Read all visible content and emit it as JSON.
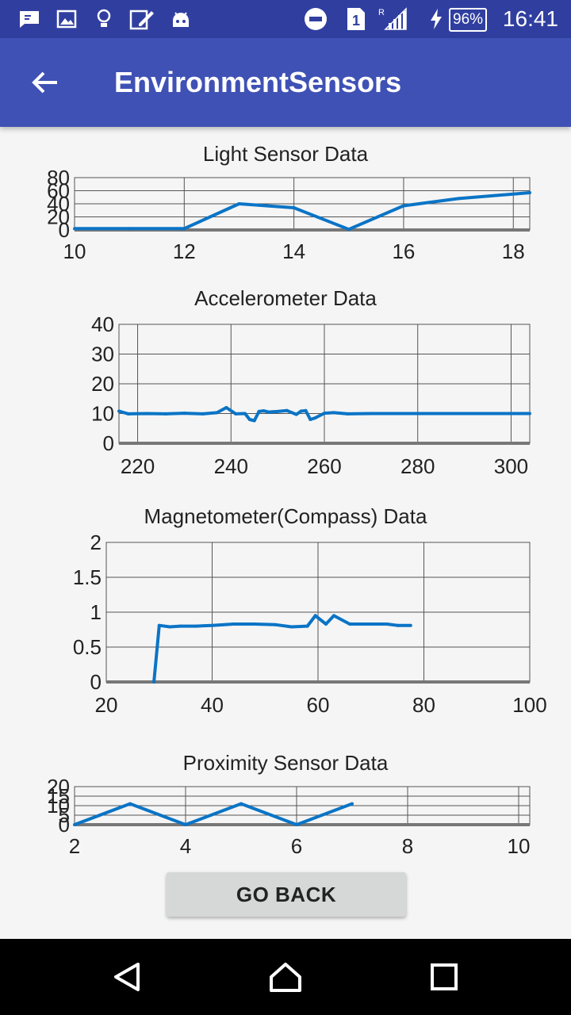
{
  "status_bar": {
    "time": "16:41",
    "battery": "96%",
    "icons": [
      "message-icon",
      "image-icon",
      "bulb-icon",
      "edit-icon",
      "android-icon",
      "dnd-icon",
      "sim-icon",
      "signal-icon",
      "charging-icon",
      "battery-icon"
    ]
  },
  "app_bar": {
    "title": "EnvironmentSensors",
    "back_icon": "arrow-back-icon"
  },
  "colors": {
    "status_bar": "#303f9f",
    "app_bar": "#3f51b5",
    "series": "#0a74c6",
    "grid": "#555555",
    "axis": "#777777"
  },
  "charts": [
    {
      "id": "light",
      "title": "Light Sensor Data",
      "chart_data": {
        "type": "line",
        "xlim": [
          10,
          18.3
        ],
        "ylim": [
          0,
          80
        ],
        "xticks": [
          "10",
          "12",
          "14",
          "16",
          "18"
        ],
        "yticks": [
          "0",
          "20",
          "40",
          "60",
          "80"
        ],
        "x": [
          10,
          11,
          12,
          13,
          14,
          15,
          16,
          17,
          18.3
        ],
        "y": [
          2,
          2,
          2,
          40,
          34,
          1,
          37,
          48,
          57
        ]
      }
    },
    {
      "id": "accel",
      "title": "Accelerometer Data",
      "chart_data": {
        "type": "line",
        "xlim": [
          216,
          304
        ],
        "ylim": [
          0,
          40
        ],
        "xticks": [
          "220",
          "240",
          "260",
          "280",
          "300"
        ],
        "yticks": [
          "0",
          "10",
          "20",
          "30",
          "40"
        ],
        "x": [
          216,
          218,
          222,
          226,
          230,
          234,
          237,
          239,
          241,
          243,
          244,
          245,
          246,
          247,
          248,
          250,
          252,
          254,
          255,
          256,
          257,
          258,
          260,
          262,
          265,
          270,
          280,
          290,
          300,
          304
        ],
        "y": [
          10.8,
          9.9,
          10,
          9.9,
          10.1,
          9.9,
          10.3,
          12,
          9.9,
          10,
          8,
          7.6,
          10.7,
          10.9,
          10.5,
          10.7,
          11,
          9.7,
          10.8,
          11,
          8,
          8.5,
          10.1,
          10.3,
          9.9,
          10,
          10,
          10,
          10,
          10
        ]
      }
    },
    {
      "id": "magnet",
      "title": "Magnetometer(Compass) Data",
      "chart_data": {
        "type": "line",
        "xlim": [
          20,
          100
        ],
        "ylim": [
          0,
          2
        ],
        "xticks": [
          "20",
          "40",
          "60",
          "80",
          "100"
        ],
        "yticks": [
          "0",
          "0.5",
          "1",
          "1.5",
          "2"
        ],
        "x": [
          29,
          30,
          32,
          34,
          37,
          40,
          44,
          48,
          52,
          55,
          58,
          59.5,
          61.5,
          63,
          66,
          70,
          73,
          75,
          77.5
        ],
        "y": [
          0,
          0.81,
          0.79,
          0.8,
          0.8,
          0.81,
          0.83,
          0.83,
          0.82,
          0.79,
          0.8,
          0.95,
          0.83,
          0.95,
          0.83,
          0.83,
          0.83,
          0.81,
          0.81
        ]
      }
    },
    {
      "id": "proximity",
      "title": "Proximity Sensor Data",
      "chart_data": {
        "type": "line",
        "xlim": [
          2,
          10.2
        ],
        "ylim": [
          0,
          20
        ],
        "xticks": [
          "2",
          "4",
          "6",
          "8",
          "10"
        ],
        "yticks": [
          "0",
          "5",
          "10",
          "15",
          "20"
        ],
        "x": [
          2,
          3,
          4,
          5,
          6,
          7
        ],
        "y": [
          0,
          11,
          0,
          11,
          0,
          11
        ]
      }
    }
  ],
  "go_back_label": "GO BACK",
  "nav_bar": {
    "back": "nav-back-icon",
    "home": "nav-home-icon",
    "recents": "nav-recents-icon"
  }
}
